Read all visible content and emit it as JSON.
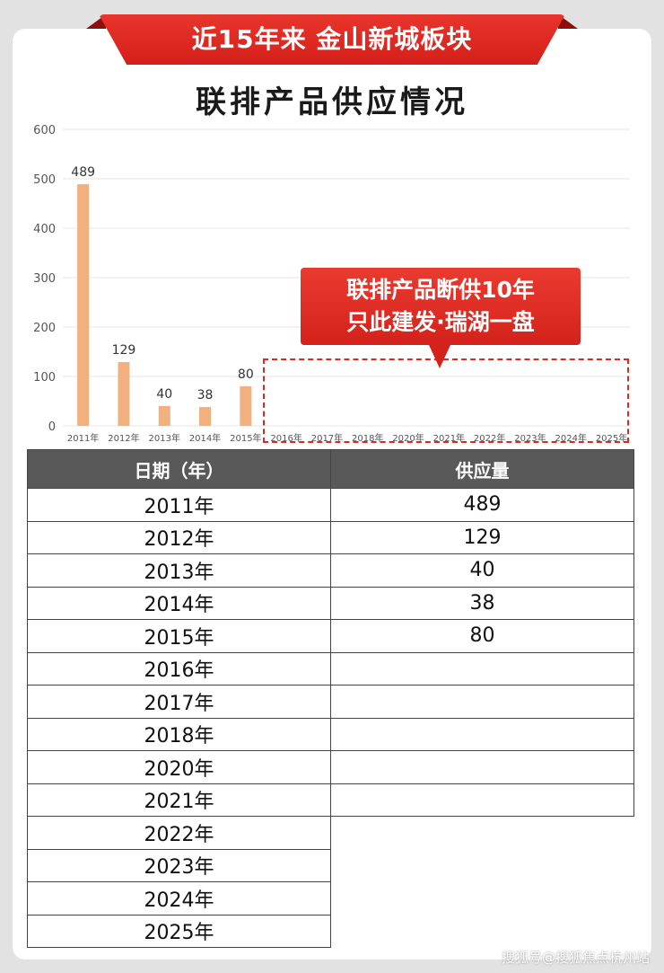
{
  "banner": {
    "text": "近15年来 金山新城板块"
  },
  "title": "联排产品供应情况",
  "callout": {
    "line1": "联排产品断供10年",
    "line2": "只此建发·瑞湖一盘"
  },
  "colors": {
    "bar": "#f2b07f",
    "accent": "#d82a22",
    "header": "#595959"
  },
  "chart_data": {
    "type": "bar",
    "categories": [
      "2011年",
      "2012年",
      "2013年",
      "2014年",
      "2015年",
      "2016年",
      "2017年",
      "2018年",
      "2020年",
      "2021年",
      "2022年",
      "2023年",
      "2024年",
      "2025年"
    ],
    "values": [
      489,
      129,
      40,
      38,
      80,
      null,
      null,
      null,
      null,
      null,
      null,
      null,
      null,
      null
    ],
    "yticks": [
      "0",
      "100",
      "200",
      "300",
      "400",
      "500",
      "600"
    ],
    "ylim": [
      0,
      600
    ],
    "grid": true,
    "title": "联排产品供应情况"
  },
  "table": {
    "headers": [
      "日期（年）",
      "供应量"
    ],
    "rows": [
      [
        "2011年",
        "489"
      ],
      [
        "2012年",
        "129"
      ],
      [
        "2013年",
        "40"
      ],
      [
        "2014年",
        "38"
      ],
      [
        "2015年",
        "80"
      ],
      [
        "2016年",
        ""
      ],
      [
        "2017年",
        ""
      ],
      [
        "2018年",
        ""
      ],
      [
        "2020年",
        ""
      ],
      [
        "2021年",
        ""
      ],
      [
        "2022年",
        ""
      ],
      [
        "2023年",
        ""
      ],
      [
        "2024年",
        ""
      ],
      [
        "2025年",
        ""
      ]
    ]
  },
  "watermark": "搜狐号@搜狐焦点杭州站"
}
